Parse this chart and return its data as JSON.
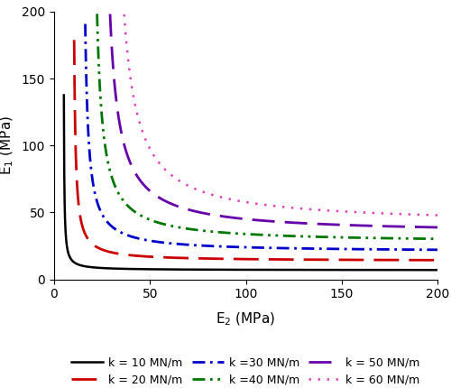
{
  "k_values": [
    10,
    20,
    30,
    40,
    50,
    60
  ],
  "colors": [
    "#000000",
    "#cc0000",
    "#0000cc",
    "#007700",
    "#6600aa",
    "#dd44bb"
  ],
  "legend_labels": [
    "k = 10 MN/m",
    "k = 20 MN/m",
    "k =30 MN/m",
    "k =40 MN/m",
    "k = 50 MN/m",
    "k = 60 MN/m"
  ],
  "linewidths": [
    1.8,
    2.0,
    2.0,
    2.0,
    2.0,
    1.8
  ],
  "xlim": [
    0,
    200
  ],
  "ylim": [
    0,
    200
  ],
  "xticks": [
    0,
    50,
    100,
    150,
    200
  ],
  "yticks": [
    0,
    50,
    100,
    150,
    200
  ],
  "E2_min": 1.0,
  "E2_max": 200,
  "n_points": 2000,
  "a_coef": 1.464,
  "b_coef": 0.707
}
